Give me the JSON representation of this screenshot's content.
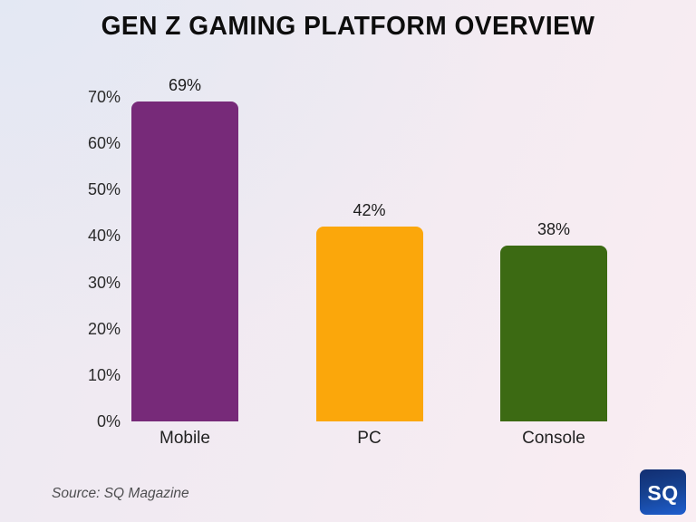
{
  "title": "GEN Z GAMING PLATFORM OVERVIEW",
  "source": "Source: SQ Magazine",
  "logo": {
    "text": "SQ",
    "bg_from": "#122e71",
    "bg_to": "#1e5ecf"
  },
  "colors": {
    "mobile_bar": "#772a79",
    "pc_bar": "#fba70b",
    "console_bar": "#3c6a13",
    "background_left": "#e3e8f3",
    "background_right": "#f8ecf2",
    "text": "#1c1c1c"
  },
  "chart_data": {
    "type": "bar",
    "categories": [
      "Mobile",
      "PC",
      "Console"
    ],
    "values": [
      69,
      42,
      38
    ],
    "value_labels": [
      "69%",
      "42%",
      "38%"
    ],
    "bar_colors": [
      "#772a79",
      "#fba70b",
      "#3c6a13"
    ],
    "title": "GEN Z GAMING PLATFORM OVERVIEW",
    "xlabel": "",
    "ylabel": "",
    "ylim": [
      0,
      70
    ],
    "y_tick_values": [
      0,
      10,
      20,
      30,
      40,
      50,
      60,
      70
    ],
    "y_tick_labels": [
      "0%",
      "10%",
      "20%",
      "30%",
      "40%",
      "50%",
      "60%",
      "70%"
    ],
    "grid": false,
    "legend": "none"
  }
}
